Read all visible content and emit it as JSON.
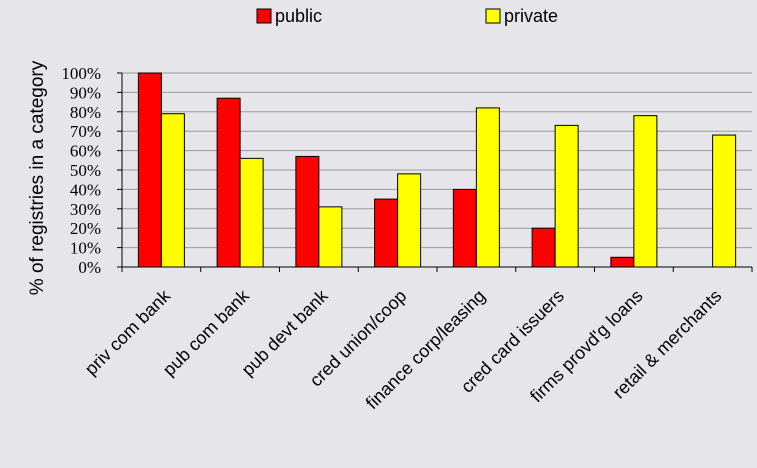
{
  "chart_data": {
    "type": "bar",
    "title": "",
    "xlabel": "",
    "ylabel": "% of registries in a category",
    "ylim": [
      0,
      100
    ],
    "yticks": [
      "0%",
      "10%",
      "20%",
      "30%",
      "40%",
      "50%",
      "60%",
      "70%",
      "80%",
      "90%",
      "100%"
    ],
    "grid": true,
    "legend_position": "top-center",
    "categories": [
      "priv com bank",
      "pub com bank",
      "pub devt bank",
      "cred union/coop",
      "finance corp/leasing",
      "cred card issuers",
      "firms provd'g loans",
      "retail & merchants"
    ],
    "series": [
      {
        "name": "public",
        "color": "#ff0000",
        "values": [
          100,
          87,
          57,
          35,
          40,
          20,
          5,
          0
        ]
      },
      {
        "name": "private",
        "color": "#ffff00",
        "values": [
          79,
          56,
          31,
          48,
          82,
          73,
          78,
          68
        ]
      }
    ]
  }
}
